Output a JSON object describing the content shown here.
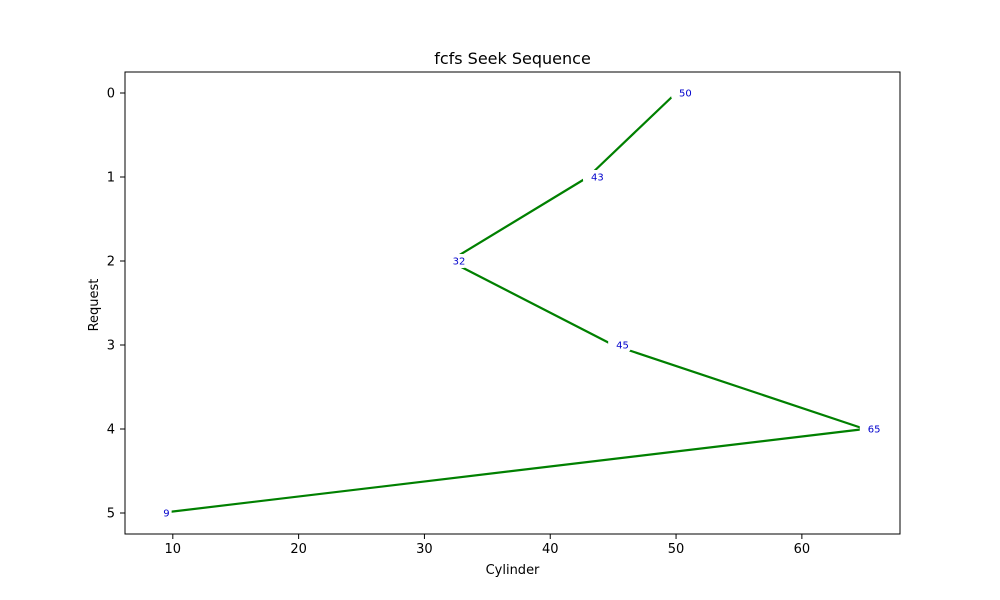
{
  "chart_data": {
    "type": "line",
    "title": "fcfs Seek Sequence",
    "xlabel": "Cylinder",
    "ylabel": "Request",
    "xlim": [
      6.2,
      67.8
    ],
    "ylim": [
      5.25,
      -0.25
    ],
    "y_inverted": true,
    "x_ticks": [
      10,
      20,
      30,
      40,
      50,
      60
    ],
    "y_ticks": [
      0,
      1,
      2,
      3,
      4,
      5
    ],
    "grid": false,
    "legend": "none",
    "series": [
      {
        "points": [
          {
            "x": 50,
            "y": 0,
            "label": "50"
          },
          {
            "x": 43,
            "y": 1,
            "label": "43"
          },
          {
            "x": 32,
            "y": 2,
            "label": "32"
          },
          {
            "x": 45,
            "y": 3,
            "label": "45"
          },
          {
            "x": 65,
            "y": 4,
            "label": "65"
          },
          {
            "x": 9,
            "y": 5,
            "label": "9"
          }
        ]
      }
    ],
    "colors": {
      "line": "#008000",
      "label_text": "#0000cc",
      "label_box": "#ffffff",
      "axes": "#000000"
    }
  }
}
